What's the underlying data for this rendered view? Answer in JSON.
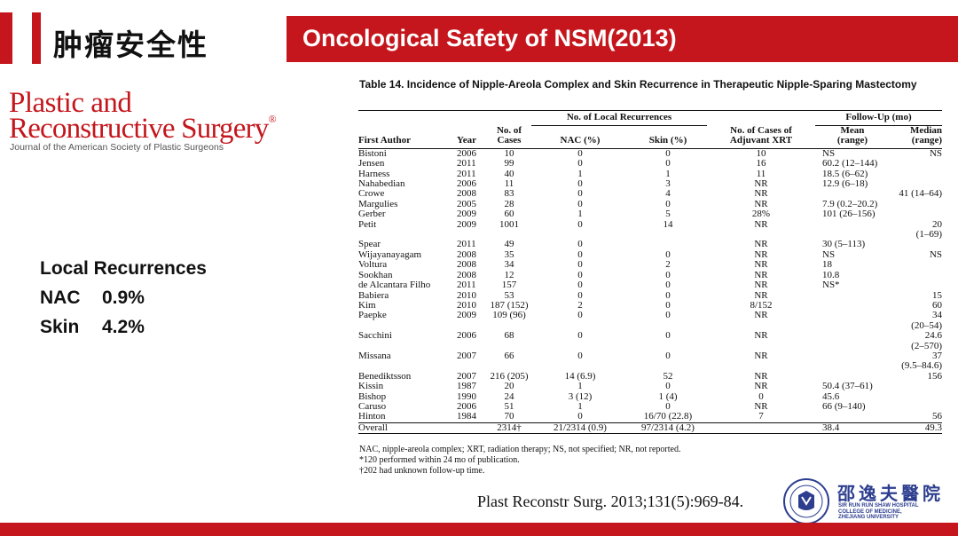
{
  "header": {
    "cn_title": "肿瘤安全性",
    "title": "Oncological Safety of NSM(2013)"
  },
  "journal_logo": {
    "line1": "Plastic and",
    "line2": "Reconstructive Surgery",
    "registered": "®",
    "line3": "Journal of the American Society of Plastic Surgeons"
  },
  "summary": {
    "heading": "Local Recurrences",
    "nac_label": "NAC",
    "nac_value": "0.9%",
    "skin_label": "Skin",
    "skin_value": "4.2%"
  },
  "table": {
    "caption": "Table 14.  Incidence of Nipple-Areola Complex and Skin Recurrence in Therapeutic Nipple-Sparing Mastectomy",
    "group_local": "No. of Local Recurrences",
    "group_follow": "Follow-Up (mo)",
    "col_author": "First Author",
    "col_year": "Year",
    "col_cases_1": "No. of",
    "col_cases_2": "Cases",
    "col_nac": "NAC (%)",
    "col_skin": "Skin (%)",
    "col_xrt_1": "No. of Cases of",
    "col_xrt_2": "Adjuvant XRT",
    "col_mean_1": "Mean",
    "col_mean_2": "(range)",
    "col_median_1": "Median",
    "col_median_2": "(range)",
    "rows": [
      {
        "author": "Bistoni",
        "year": "2006",
        "cases": "10",
        "nac": "0",
        "skin": "0",
        "xrt": "10",
        "mean": "NS",
        "median": "NS"
      },
      {
        "author": "Jensen",
        "year": "2011",
        "cases": "99",
        "nac": "0",
        "skin": "0",
        "xrt": "16",
        "mean": "60.2 (12–144)",
        "median": ""
      },
      {
        "author": "Harness",
        "year": "2011",
        "cases": "40",
        "nac": "1",
        "skin": "1",
        "xrt": "11",
        "mean": "18.5 (6–62)",
        "median": ""
      },
      {
        "author": "Nahabedian",
        "year": "2006",
        "cases": "11",
        "nac": "0",
        "skin": "3",
        "xrt": "NR",
        "mean": "12.9 (6–18)",
        "median": ""
      },
      {
        "author": "Crowe",
        "year": "2008",
        "cases": "83",
        "nac": "0",
        "skin": "4",
        "xrt": "NR",
        "mean": "",
        "median": "41 (14–64)"
      },
      {
        "author": "Margulies",
        "year": "2005",
        "cases": "28",
        "nac": "0",
        "skin": "0",
        "xrt": "NR",
        "mean": "7.9 (0.2–20.2)",
        "median": ""
      },
      {
        "author": "Gerber",
        "year": "2009",
        "cases": "60",
        "nac": "1",
        "skin": "5",
        "xrt": "28%",
        "mean": "101 (26–156)",
        "median": ""
      },
      {
        "author": "Petit",
        "year": "2009",
        "cases": "1001",
        "nac": "0",
        "skin": "14",
        "xrt": "NR",
        "mean": "",
        "median": "20"
      },
      {
        "author": "",
        "year": "",
        "cases": "",
        "nac": "",
        "skin": "",
        "xrt": "",
        "mean": "",
        "median": "(1–69)"
      },
      {
        "author": "Spear",
        "year": "2011",
        "cases": "49",
        "nac": "0",
        "skin": "",
        "xrt": "NR",
        "mean": "30 (5–113)",
        "median": ""
      },
      {
        "author": "Wijayanayagam",
        "year": "2008",
        "cases": "35",
        "nac": "0",
        "skin": "0",
        "xrt": "NR",
        "mean": "NS",
        "median": "NS"
      },
      {
        "author": "Voltura",
        "year": "2008",
        "cases": "34",
        "nac": "0",
        "skin": "2",
        "xrt": "NR",
        "mean": "18",
        "median": ""
      },
      {
        "author": "Sookhan",
        "year": "2008",
        "cases": "12",
        "nac": "0",
        "skin": "0",
        "xrt": "NR",
        "mean": "10.8",
        "median": ""
      },
      {
        "author": "de Alcantara Filho",
        "year": "2011",
        "cases": "157",
        "nac": "0",
        "skin": "0",
        "xrt": "NR",
        "mean": "NS*",
        "median": ""
      },
      {
        "author": "Babiera",
        "year": "2010",
        "cases": "53",
        "nac": "0",
        "skin": "0",
        "xrt": "NR",
        "mean": "",
        "median": "15"
      },
      {
        "author": "Kim",
        "year": "2010",
        "cases": "187 (152)",
        "nac": "2",
        "skin": "0",
        "xrt": "8/152",
        "mean": "",
        "median": "60"
      },
      {
        "author": "Paepke",
        "year": "2009",
        "cases": "109 (96)",
        "nac": "0",
        "skin": "0",
        "xrt": "NR",
        "mean": "",
        "median": "34"
      },
      {
        "author": "",
        "year": "",
        "cases": "",
        "nac": "",
        "skin": "",
        "xrt": "",
        "mean": "",
        "median": "(20–54)"
      },
      {
        "author": "Sacchini",
        "year": "2006",
        "cases": "68",
        "nac": "0",
        "skin": "0",
        "xrt": "NR",
        "mean": "",
        "median": "24.6"
      },
      {
        "author": "",
        "year": "",
        "cases": "",
        "nac": "",
        "skin": "",
        "xrt": "",
        "mean": "",
        "median": "(2–570)"
      },
      {
        "author": "Missana",
        "year": "2007",
        "cases": "66",
        "nac": "0",
        "skin": "0",
        "xrt": "NR",
        "mean": "",
        "median": "37"
      },
      {
        "author": "",
        "year": "",
        "cases": "",
        "nac": "",
        "skin": "",
        "xrt": "",
        "mean": "",
        "median": "(9.5–84.6)"
      },
      {
        "author": "Benediktsson",
        "year": "2007",
        "cases": "216 (205)",
        "nac": "14 (6.9)",
        "skin": "52",
        "xrt": "NR",
        "mean": "",
        "median": "156"
      },
      {
        "author": "Kissin",
        "year": "1987",
        "cases": "20",
        "nac": "1",
        "skin": "0",
        "xrt": "NR",
        "mean": "50.4 (37–61)",
        "median": ""
      },
      {
        "author": "Bishop",
        "year": "1990",
        "cases": "24",
        "nac": "3 (12)",
        "skin": "1 (4)",
        "xrt": "0",
        "mean": "45.6",
        "median": ""
      },
      {
        "author": "Caruso",
        "year": "2006",
        "cases": "51",
        "nac": "1",
        "skin": "0",
        "xrt": "NR",
        "mean": "66 (9–140)",
        "median": ""
      },
      {
        "author": "Hinton",
        "year": "1984",
        "cases": "70",
        "nac": "0",
        "skin": "16/70 (22.8)",
        "xrt": "7",
        "mean": "",
        "median": "56"
      }
    ],
    "overall": {
      "author": "Overall",
      "year": "",
      "cases": "2314†",
      "nac": "21/2314 (0.9)",
      "skin": "97/2314 (4.2)",
      "xrt": "",
      "mean": "38.4",
      "median": "49.3"
    },
    "note1": "NAC, nipple-areola complex; XRT, radiation therapy; NS, not specified; NR, not reported.",
    "note2": "*120 performed within 24 mo of publication.",
    "note3": "†202 had unknown follow-up time."
  },
  "citation": "Plast Reconstr Surg. 2013;131(5):969-84.",
  "hospital": {
    "cn_name": "邵逸夫醫院",
    "en_1": "SIR RUN RUN SHAW HOSPITAL",
    "en_2": "COLLEGE OF MEDICINE,",
    "en_3": "ZHEJIANG UNIVERSITY"
  },
  "colors": {
    "accent": "#c4161c",
    "hospital_blue": "#2d3e8f"
  }
}
